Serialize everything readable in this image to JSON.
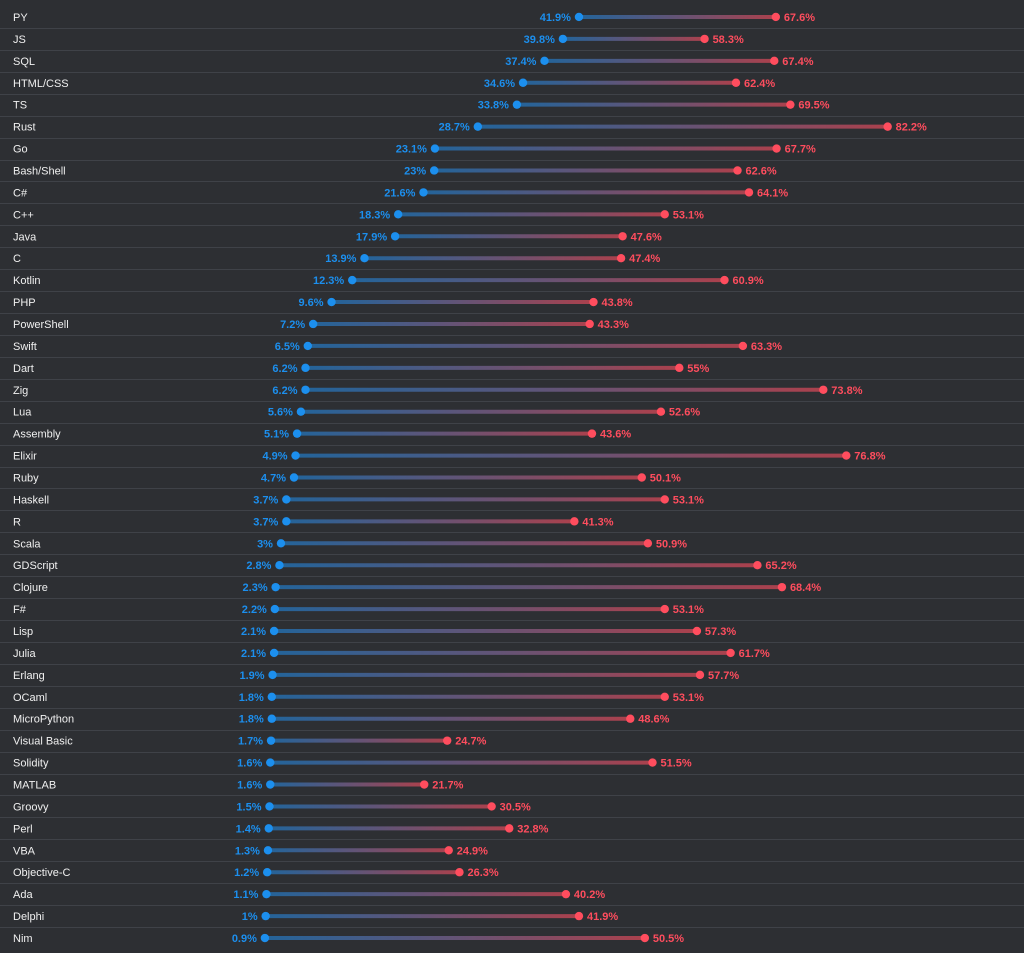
{
  "colors": {
    "background": "#2d2f33",
    "separator": "#3f4248",
    "label_text": "#f0f0f0",
    "series_a": "#1c8fee",
    "series_b": "#ff4d5e"
  },
  "chart_data": {
    "type": "dumbbell",
    "orientation": "horizontal",
    "xlim": [
      0,
      100
    ],
    "grid": false,
    "legend": "none",
    "series": [
      {
        "name": "",
        "color": "#1c8fee",
        "role": "lower"
      },
      {
        "name": "",
        "color": "#ff4d5e",
        "role": "higher"
      }
    ],
    "rows": [
      {
        "label": "PY",
        "a": 41.9,
        "b": 67.6
      },
      {
        "label": "JS",
        "a": 39.8,
        "b": 58.3
      },
      {
        "label": "SQL",
        "a": 37.4,
        "b": 67.4
      },
      {
        "label": "HTML/CSS",
        "a": 34.6,
        "b": 62.4
      },
      {
        "label": "TS",
        "a": 33.8,
        "b": 69.5
      },
      {
        "label": "Rust",
        "a": 28.7,
        "b": 82.2
      },
      {
        "label": "Go",
        "a": 23.1,
        "b": 67.7
      },
      {
        "label": "Bash/Shell",
        "a": 23,
        "b": 62.6
      },
      {
        "label": "C#",
        "a": 21.6,
        "b": 64.1
      },
      {
        "label": "C++",
        "a": 18.3,
        "b": 53.1
      },
      {
        "label": "Java",
        "a": 17.9,
        "b": 47.6
      },
      {
        "label": "C",
        "a": 13.9,
        "b": 47.4
      },
      {
        "label": "Kotlin",
        "a": 12.3,
        "b": 60.9
      },
      {
        "label": "PHP",
        "a": 9.6,
        "b": 43.8
      },
      {
        "label": "PowerShell",
        "a": 7.2,
        "b": 43.3
      },
      {
        "label": "Swift",
        "a": 6.5,
        "b": 63.3
      },
      {
        "label": "Dart",
        "a": 6.2,
        "b": 55
      },
      {
        "label": "Zig",
        "a": 6.2,
        "b": 73.8
      },
      {
        "label": "Lua",
        "a": 5.6,
        "b": 52.6
      },
      {
        "label": "Assembly",
        "a": 5.1,
        "b": 43.6
      },
      {
        "label": "Elixir",
        "a": 4.9,
        "b": 76.8
      },
      {
        "label": "Ruby",
        "a": 4.7,
        "b": 50.1
      },
      {
        "label": "Haskell",
        "a": 3.7,
        "b": 53.1
      },
      {
        "label": "R",
        "a": 3.7,
        "b": 41.3
      },
      {
        "label": "Scala",
        "a": 3,
        "b": 50.9
      },
      {
        "label": "GDScript",
        "a": 2.8,
        "b": 65.2
      },
      {
        "label": "Clojure",
        "a": 2.3,
        "b": 68.4
      },
      {
        "label": "F#",
        "a": 2.2,
        "b": 53.1
      },
      {
        "label": "Lisp",
        "a": 2.1,
        "b": 57.3
      },
      {
        "label": "Julia",
        "a": 2.1,
        "b": 61.7
      },
      {
        "label": "Erlang",
        "a": 1.9,
        "b": 57.7
      },
      {
        "label": "OCaml",
        "a": 1.8,
        "b": 53.1
      },
      {
        "label": "MicroPython",
        "a": 1.8,
        "b": 48.6
      },
      {
        "label": "Visual Basic",
        "a": 1.7,
        "b": 24.7
      },
      {
        "label": "Solidity",
        "a": 1.6,
        "b": 51.5
      },
      {
        "label": "MATLAB",
        "a": 1.6,
        "b": 21.7
      },
      {
        "label": "Groovy",
        "a": 1.5,
        "b": 30.5
      },
      {
        "label": "Perl",
        "a": 1.4,
        "b": 32.8
      },
      {
        "label": "VBA",
        "a": 1.3,
        "b": 24.9
      },
      {
        "label": "Objective-C",
        "a": 1.2,
        "b": 26.3
      },
      {
        "label": "Ada",
        "a": 1.1,
        "b": 40.2
      },
      {
        "label": "Delphi",
        "a": 1,
        "b": 41.9
      },
      {
        "label": "Nim",
        "a": 0.9,
        "b": 50.5
      }
    ]
  }
}
